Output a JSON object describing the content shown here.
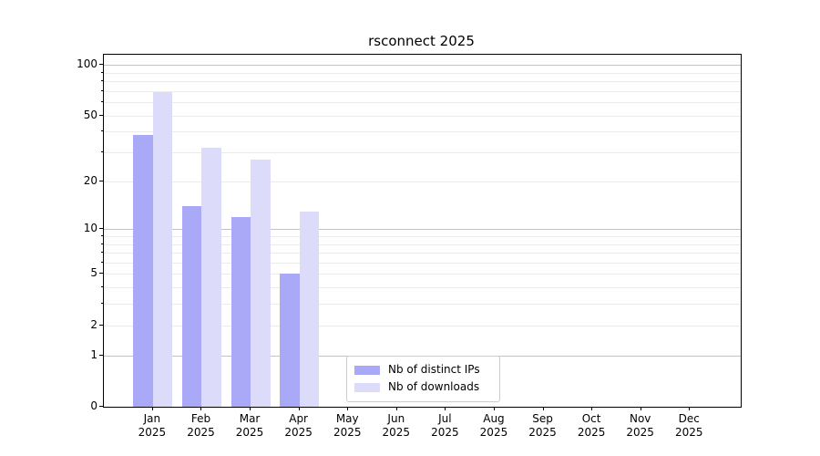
{
  "chart_data": {
    "type": "bar",
    "title": "rsconnect 2025",
    "categories": [
      "Jan 2025",
      "Feb 2025",
      "Mar 2025",
      "Apr 2025",
      "May 2025",
      "Jun 2025",
      "Jul 2025",
      "Aug 2025",
      "Sep 2025",
      "Oct 2025",
      "Nov 2025",
      "Dec 2025"
    ],
    "series": [
      {
        "name": "Nb of distinct IPs",
        "color": "#a9a9f7",
        "values": [
          38,
          14,
          12,
          5,
          0,
          0,
          0,
          0,
          0,
          0,
          0,
          0
        ]
      },
      {
        "name": "Nb of downloads",
        "color": "#dcdcfa",
        "values": [
          69,
          32,
          27,
          13,
          0,
          0,
          0,
          0,
          0,
          0,
          0,
          0
        ]
      }
    ],
    "yscale": "log1p",
    "ylabel": "",
    "xlabel": "",
    "yticks": [
      0,
      1,
      2,
      5,
      10,
      20,
      50,
      100
    ],
    "minor_yticks": [
      2,
      3,
      4,
      5,
      6,
      7,
      8,
      9,
      20,
      30,
      40,
      50,
      60,
      70,
      80,
      90
    ],
    "ylim": [
      0,
      113
    ],
    "grid": "horizontal",
    "legend_position": "lower center-right inside plot"
  },
  "colors": {
    "distinct_ips_bar": "#a9a9f7",
    "downloads_bar": "#dcdcfa",
    "major_grid": "#c3c3c3",
    "minor_grid": "#ebebeb",
    "spine": "#000000",
    "legend_border": "#cccccc"
  }
}
